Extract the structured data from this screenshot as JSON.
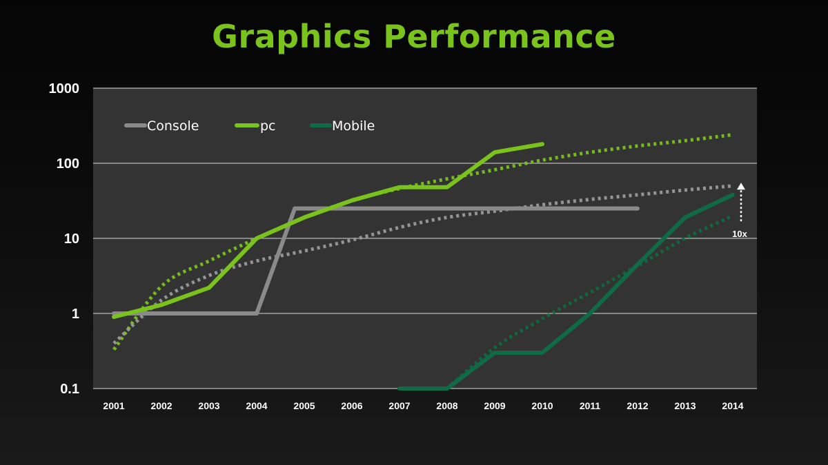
{
  "slide": {
    "title": "Graphics Performance"
  },
  "colors": {
    "console": "#8a8a8a",
    "console_trend": "#9a9a9a",
    "pc": "#7ac21c",
    "mobile": "#0f6b45",
    "plot_bg": "#333333",
    "grid": "#b8b8b8",
    "text": "#ffffff",
    "title": "#7ac21c"
  },
  "chart_data": {
    "type": "line",
    "title": "Graphics Performance",
    "xlabel": "",
    "ylabel": "",
    "y_scale": "log",
    "ylim": [
      0.1,
      1000
    ],
    "y_ticks": [
      0.1,
      1,
      10,
      100,
      1000
    ],
    "y_tick_labels": [
      "0.1",
      "1",
      "10",
      "100",
      "1000"
    ],
    "categories": [
      "2001",
      "2002",
      "2003",
      "2004",
      "2005",
      "2006",
      "2007",
      "2008",
      "2009",
      "2010",
      "2011",
      "2012",
      "2013",
      "2014"
    ],
    "grid": true,
    "legend_position": "top-left",
    "series": [
      {
        "name": "Console",
        "color": "#8a8a8a",
        "style": "solid",
        "points": [
          [
            2001,
            1
          ],
          [
            2004,
            1
          ],
          [
            2004.8,
            25
          ],
          [
            2012,
            25
          ]
        ]
      },
      {
        "name": "pc",
        "color": "#7ac21c",
        "style": "solid",
        "points": [
          [
            2001,
            0.9
          ],
          [
            2002,
            1.3
          ],
          [
            2003,
            2.2
          ],
          [
            2004,
            10
          ],
          [
            2005,
            19
          ],
          [
            2006,
            32
          ],
          [
            2007,
            48
          ],
          [
            2008,
            48
          ],
          [
            2009,
            140
          ],
          [
            2010,
            180
          ]
        ]
      },
      {
        "name": "Mobile",
        "color": "#0f6b45",
        "style": "solid",
        "points": [
          [
            2007,
            0.1
          ],
          [
            2008,
            0.1
          ],
          [
            2009,
            0.3
          ],
          [
            2010,
            0.3
          ],
          [
            2011,
            1
          ],
          [
            2012,
            4.5
          ],
          [
            2013,
            19
          ],
          [
            2014,
            38
          ]
        ]
      }
    ],
    "trendlines": [
      {
        "series": "pc",
        "color": "#7ac21c",
        "style": "dotted",
        "points": [
          [
            2001,
            0.33
          ],
          [
            2002,
            2.3
          ],
          [
            2003,
            5
          ],
          [
            2004,
            10
          ],
          [
            2005,
            19
          ],
          [
            2006,
            32
          ],
          [
            2007,
            46
          ],
          [
            2008,
            62
          ],
          [
            2009,
            82
          ],
          [
            2010,
            110
          ],
          [
            2011,
            140
          ],
          [
            2012,
            170
          ],
          [
            2013,
            200
          ],
          [
            2014,
            240
          ]
        ]
      },
      {
        "series": "Console",
        "color": "#9a9a9a",
        "style": "dotted",
        "points": [
          [
            2001,
            0.4
          ],
          [
            2002,
            1.5
          ],
          [
            2003,
            3.2
          ],
          [
            2004,
            5
          ],
          [
            2005,
            6.8
          ],
          [
            2006,
            9.5
          ],
          [
            2007,
            14
          ],
          [
            2008,
            19
          ],
          [
            2009,
            23
          ],
          [
            2010,
            28
          ],
          [
            2011,
            33
          ],
          [
            2012,
            38
          ],
          [
            2013,
            44
          ],
          [
            2014,
            50
          ]
        ]
      },
      {
        "series": "Mobile",
        "color": "#0f6b45",
        "style": "dotted",
        "points": [
          [
            2008,
            0.1
          ],
          [
            2009,
            0.35
          ],
          [
            2010,
            0.85
          ],
          [
            2011,
            1.9
          ],
          [
            2012,
            4.3
          ],
          [
            2013,
            10
          ],
          [
            2014,
            20
          ]
        ]
      }
    ],
    "annotations": [
      {
        "text": "10x",
        "arrow": "dotted up arrow",
        "x": 2014,
        "from_y": 20,
        "to_y": 55
      }
    ]
  }
}
